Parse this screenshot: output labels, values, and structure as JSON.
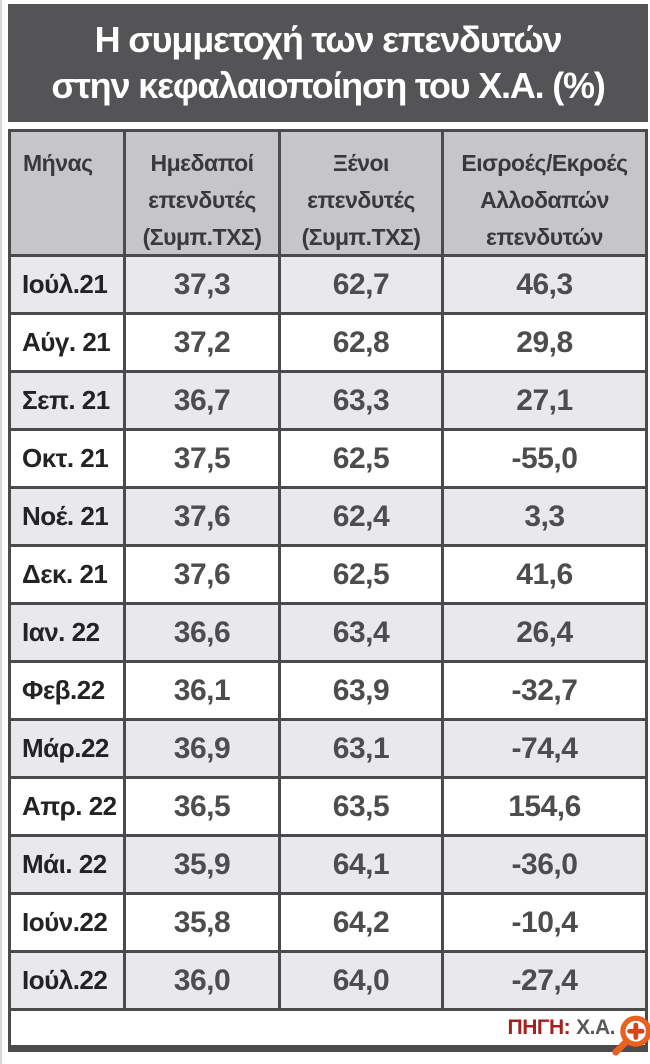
{
  "title": {
    "line1": "Η συμμετοχή των επενδυτών",
    "line2": "στην κεφαλαιοποίηση του Χ.Α. (%)"
  },
  "chart_data": {
    "type": "table",
    "title": "Η συμμετοχή των επενδυτών στην κεφαλαιοποίηση του Χ.Α. (%)",
    "columns": [
      "Μήνας",
      "Ημεδαποί\nεπενδυτές\n(Συμπ.ΤΧΣ)",
      "Ξένοι\nεπενδυτές\n(Συμπ.ΤΧΣ)",
      "Εισροές/Εκροές\nΑλλοδαπών\nεπενδυτών"
    ],
    "rows": [
      {
        "month": "Ιούλ.21",
        "domestic": "37,3",
        "foreign": "62,7",
        "flows": "46,3"
      },
      {
        "month": "Αύγ. 21",
        "domestic": "37,2",
        "foreign": "62,8",
        "flows": "29,8"
      },
      {
        "month": "Σεπ. 21",
        "domestic": "36,7",
        "foreign": "63,3",
        "flows": "27,1"
      },
      {
        "month": "Οκτ. 21",
        "domestic": "37,5",
        "foreign": "62,5",
        "flows": "-55,0"
      },
      {
        "month": "Νοέ. 21",
        "domestic": "37,6",
        "foreign": "62,4",
        "flows": "3,3"
      },
      {
        "month": "Δεκ. 21",
        "domestic": "37,6",
        "foreign": "62,5",
        "flows": "41,6"
      },
      {
        "month": "Ιαν. 22",
        "domestic": "36,6",
        "foreign": "63,4",
        "flows": "26,4"
      },
      {
        "month": "Φεβ.22",
        "domestic": "36,1",
        "foreign": "63,9",
        "flows": "-32,7"
      },
      {
        "month": "Μάρ.22",
        "domestic": "36,9",
        "foreign": "63,1",
        "flows": "-74,4"
      },
      {
        "month": "Απρ. 22",
        "domestic": "36,5",
        "foreign": "63,5",
        "flows": "154,6"
      },
      {
        "month": "Μάι. 22",
        "domestic": "35,9",
        "foreign": "64,1",
        "flows": "-36,0"
      },
      {
        "month": "Ιούν.22",
        "domestic": "35,8",
        "foreign": "64,2",
        "flows": "-10,4"
      },
      {
        "month": "Ιούλ.22",
        "domestic": "36,0",
        "foreign": "64,0",
        "flows": "-27,4"
      }
    ]
  },
  "footer": {
    "source_label": "ΠΗΓΗ:",
    "source_value": "Χ.Α."
  },
  "icons": {
    "zoom_in_icon": "magnifier-plus"
  },
  "colors": {
    "title_bg": "#545457",
    "header_bg": "#c6c6c8",
    "row_alt_bg": "#e9e9eb",
    "row_bg": "#ffffff",
    "border": "#4b4b4d",
    "month_text": "#232325",
    "number_text": "#4d4d4f",
    "source_label": "#a3221f",
    "zoom_icon": "#e8611f"
  }
}
